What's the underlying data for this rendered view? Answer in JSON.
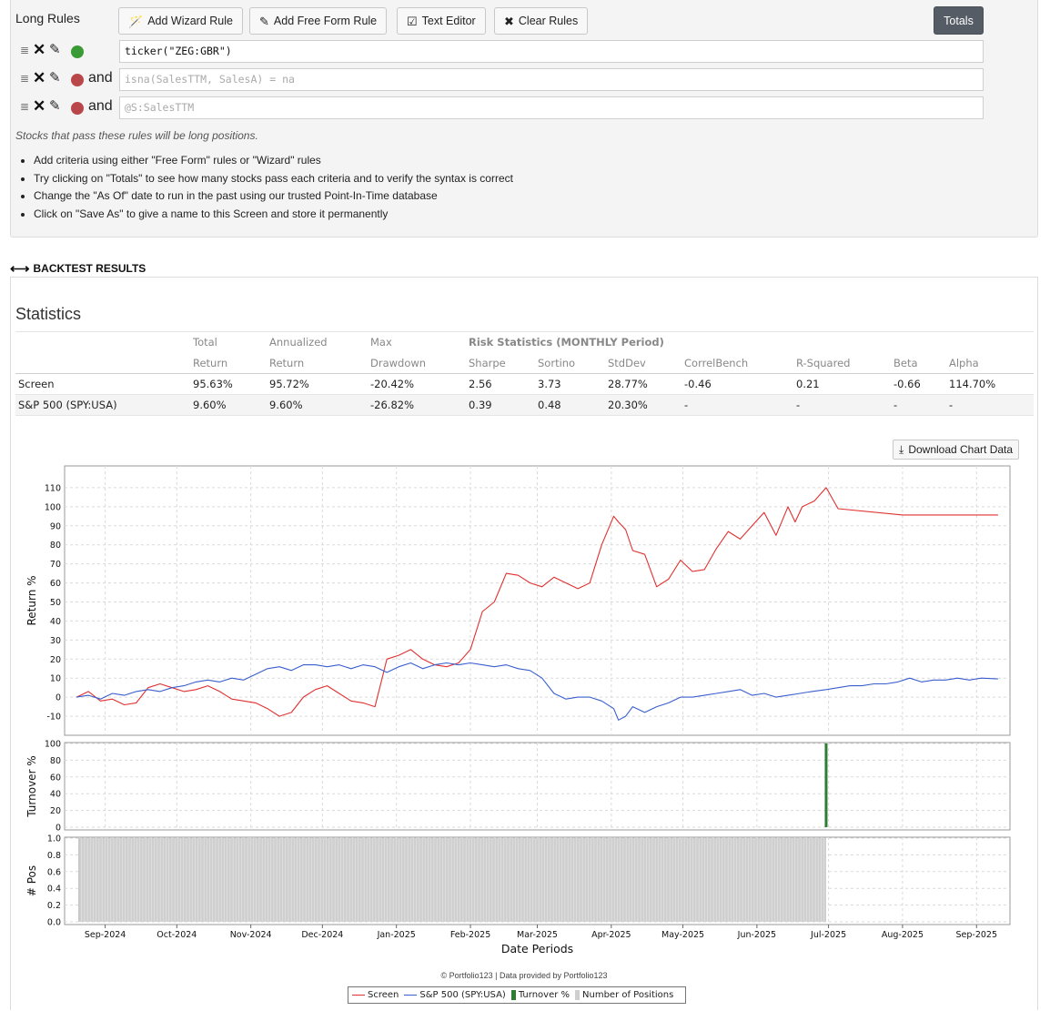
{
  "rules_panel": {
    "title": "Long Rules",
    "buttons": {
      "add_wizard": "Add Wizard Rule",
      "add_free_form": "Add Free Form Rule",
      "text_editor": "Text Editor",
      "clear_rules": "Clear Rules",
      "totals": "Totals"
    },
    "rules": [
      {
        "conjunction": "",
        "value": "ticker(\"ZEG:GBR\")",
        "status": "green",
        "placeholder": false
      },
      {
        "conjunction": "and",
        "value": "isna(SalesTTM, SalesA) = na",
        "status": "red",
        "placeholder": true
      },
      {
        "conjunction": "and",
        "value": "@S:SalesTTM",
        "status": "red",
        "placeholder": true
      }
    ],
    "hint": "Stocks that pass these rules will be long positions.",
    "tips": [
      "Add criteria using either \"Free Form\" rules or \"Wizard\" rules",
      "Try clicking on \"Totals\" to see how many stocks pass each criteria and to verify the syntax is correct",
      "Change the \"As Of\" date to run in the past using our trusted Point-In-Time database",
      "Click on \"Save As\" to give a name to this Screen and store it permanently"
    ],
    "colors": {
      "green": "#3a9a35",
      "red": "#b9474a"
    }
  },
  "backtest": {
    "header": "BACKTEST RESULTS",
    "stats_title": "Statistics",
    "table_header_row1": [
      "",
      "Total",
      "Annualized",
      "Max",
      "Risk Statistics (MONTHLY Period)",
      "",
      "",
      "",
      "",
      "",
      ""
    ],
    "table_header_row2": [
      "",
      "Return",
      "Return",
      "Drawdown",
      "Sharpe",
      "Sortino",
      "StdDev",
      "CorrelBench",
      "R-Squared",
      "Beta",
      "Alpha"
    ],
    "rows": [
      [
        "Screen",
        "95.63%",
        "95.72%",
        "-20.42%",
        "2.56",
        "3.73",
        "28.77%",
        "-0.46",
        "0.21",
        "-0.66",
        "114.70%"
      ],
      [
        "S&P 500 (SPY:USA)",
        "9.60%",
        "9.60%",
        "-26.82%",
        "0.39",
        "0.48",
        "20.30%",
        "-",
        "-",
        "-",
        "-"
      ]
    ],
    "download_label": "Download Chart Data",
    "credit": "© Portfolio123 | Data provided by Portfolio123"
  },
  "chart_data": [
    {
      "type": "line",
      "title": "",
      "xlabel": "Date Periods",
      "ylabel": "Return %",
      "ylim": [
        -20,
        120
      ],
      "yticks": [
        -10,
        0,
        10,
        20,
        30,
        40,
        50,
        60,
        70,
        80,
        90,
        100,
        110
      ],
      "grid": true,
      "x_ticks": [
        "Sep-2024",
        "Oct-2024",
        "Nov-2024",
        "Dec-2024",
        "Jan-2025",
        "Feb-2025",
        "Mar-2025",
        "Apr-2025",
        "May-2025",
        "Jun-2025",
        "Jul-2025",
        "Aug-2025",
        "Sep-2025"
      ],
      "x_tick_dates": [
        "2024-09-01",
        "2024-10-01",
        "2024-11-01",
        "2024-12-01",
        "2025-01-01",
        "2025-02-01",
        "2025-03-01",
        "2025-04-01",
        "2025-05-01",
        "2025-06-01",
        "2025-07-01",
        "2025-08-01",
        "2025-09-01"
      ],
      "x_range": [
        "2024-08-15",
        "2025-09-15"
      ],
      "series": [
        {
          "name": "Screen",
          "color": "#e03030",
          "x": [
            "2024-08-20",
            "2024-08-25",
            "2024-08-30",
            "2024-09-04",
            "2024-09-09",
            "2024-09-14",
            "2024-09-19",
            "2024-09-24",
            "2024-09-29",
            "2024-10-04",
            "2024-10-09",
            "2024-10-14",
            "2024-10-19",
            "2024-10-24",
            "2024-10-29",
            "2024-11-03",
            "2024-11-08",
            "2024-11-13",
            "2024-11-18",
            "2024-11-23",
            "2024-11-28",
            "2024-12-03",
            "2024-12-08",
            "2024-12-13",
            "2024-12-18",
            "2024-12-23",
            "2024-12-26",
            "2024-12-28",
            "2025-01-02",
            "2025-01-07",
            "2025-01-12",
            "2025-01-17",
            "2025-01-22",
            "2025-01-27",
            "2025-02-01",
            "2025-02-06",
            "2025-02-11",
            "2025-02-16",
            "2025-02-21",
            "2025-02-26",
            "2025-03-03",
            "2025-03-08",
            "2025-03-13",
            "2025-03-18",
            "2025-03-23",
            "2025-03-28",
            "2025-04-02",
            "2025-04-04",
            "2025-04-07",
            "2025-04-10",
            "2025-04-15",
            "2025-04-20",
            "2025-04-25",
            "2025-04-30",
            "2025-05-05",
            "2025-05-10",
            "2025-05-15",
            "2025-05-20",
            "2025-05-25",
            "2025-05-30",
            "2025-06-04",
            "2025-06-09",
            "2025-06-14",
            "2025-06-17",
            "2025-06-20",
            "2025-06-25",
            "2025-06-30",
            "2025-07-05",
            "2025-08-01",
            "2025-09-01",
            "2025-09-10"
          ],
          "y": [
            0,
            3,
            -2,
            -1,
            -4,
            -3,
            5,
            7,
            5,
            3,
            4,
            6,
            3,
            -1,
            -2,
            -3,
            -6,
            -10,
            -8,
            0,
            4,
            6,
            2,
            -2,
            -3,
            -5,
            10,
            20,
            22,
            25,
            20,
            17,
            16,
            18,
            25,
            45,
            50,
            65,
            64,
            60,
            58,
            63,
            60,
            57,
            60,
            80,
            95,
            92,
            88,
            77,
            75,
            58,
            62,
            72,
            66,
            67,
            78,
            87,
            83,
            90,
            97,
            85,
            100,
            92,
            100,
            103,
            110,
            99,
            95.7,
            95.7,
            95.7
          ]
        },
        {
          "name": "S&P 500 (SPY:USA)",
          "color": "#3a5fcd",
          "x": [
            "2024-08-20",
            "2024-08-25",
            "2024-08-30",
            "2024-09-04",
            "2024-09-09",
            "2024-09-14",
            "2024-09-19",
            "2024-09-24",
            "2024-09-29",
            "2024-10-04",
            "2024-10-09",
            "2024-10-14",
            "2024-10-19",
            "2024-10-24",
            "2024-10-29",
            "2024-11-03",
            "2024-11-08",
            "2024-11-13",
            "2024-11-18",
            "2024-11-23",
            "2024-11-28",
            "2024-12-03",
            "2024-12-08",
            "2024-12-13",
            "2024-12-18",
            "2024-12-23",
            "2024-12-28",
            "2025-01-02",
            "2025-01-07",
            "2025-01-12",
            "2025-01-17",
            "2025-01-22",
            "2025-01-27",
            "2025-02-01",
            "2025-02-06",
            "2025-02-11",
            "2025-02-16",
            "2025-02-21",
            "2025-02-26",
            "2025-03-03",
            "2025-03-08",
            "2025-03-13",
            "2025-03-18",
            "2025-03-23",
            "2025-03-28",
            "2025-04-02",
            "2025-04-04",
            "2025-04-07",
            "2025-04-10",
            "2025-04-15",
            "2025-04-20",
            "2025-04-25",
            "2025-04-30",
            "2025-05-05",
            "2025-05-10",
            "2025-05-15",
            "2025-05-20",
            "2025-05-25",
            "2025-05-30",
            "2025-06-04",
            "2025-06-09",
            "2025-06-14",
            "2025-06-19",
            "2025-06-24",
            "2025-06-30",
            "2025-07-05",
            "2025-07-10",
            "2025-07-15",
            "2025-07-20",
            "2025-07-25",
            "2025-07-30",
            "2025-08-04",
            "2025-08-09",
            "2025-08-14",
            "2025-08-19",
            "2025-08-24",
            "2025-08-29",
            "2025-09-03",
            "2025-09-10"
          ],
          "y": [
            0,
            1,
            -1,
            2,
            1,
            3,
            4,
            3,
            5,
            6,
            8,
            9,
            8,
            10,
            9,
            12,
            15,
            16,
            14,
            17,
            17,
            16,
            17,
            15,
            17,
            16,
            13,
            16,
            18,
            15,
            17,
            18,
            17,
            18,
            17,
            16,
            17,
            15,
            14,
            10,
            2,
            -1,
            0,
            0,
            -2,
            -6,
            -12,
            -10,
            -5,
            -8,
            -5,
            -3,
            0,
            0,
            1,
            2,
            3,
            4,
            1,
            2,
            0,
            1,
            2,
            3,
            4,
            5,
            6,
            6,
            7,
            7,
            8,
            10,
            8,
            9,
            9,
            10,
            9,
            10,
            9.6
          ]
        }
      ]
    },
    {
      "type": "bar",
      "title": "",
      "xlabel": "",
      "ylabel": "Turnover %",
      "ylim": [
        0,
        100
      ],
      "yticks": [
        0,
        20,
        40,
        60,
        80,
        100
      ],
      "grid": true,
      "series": [
        {
          "name": "Turnover %",
          "color": "#2e7d32",
          "x": [
            "2025-06-30"
          ],
          "y": [
            100
          ]
        }
      ]
    },
    {
      "type": "area",
      "title": "",
      "xlabel": "",
      "ylabel": "# Pos",
      "ylim": [
        0,
        1
      ],
      "yticks": [
        0.0,
        0.2,
        0.4,
        0.6,
        0.8,
        1.0
      ],
      "grid": true,
      "series": [
        {
          "name": "Number of Positions",
          "color": "#cfcfcf",
          "x": [
            "2024-08-21",
            "2025-06-30"
          ],
          "y": [
            1,
            1
          ]
        }
      ]
    }
  ],
  "legend": [
    "Screen",
    "S&P 500 (SPY:USA)",
    "Turnover %",
    "Number of Positions"
  ]
}
